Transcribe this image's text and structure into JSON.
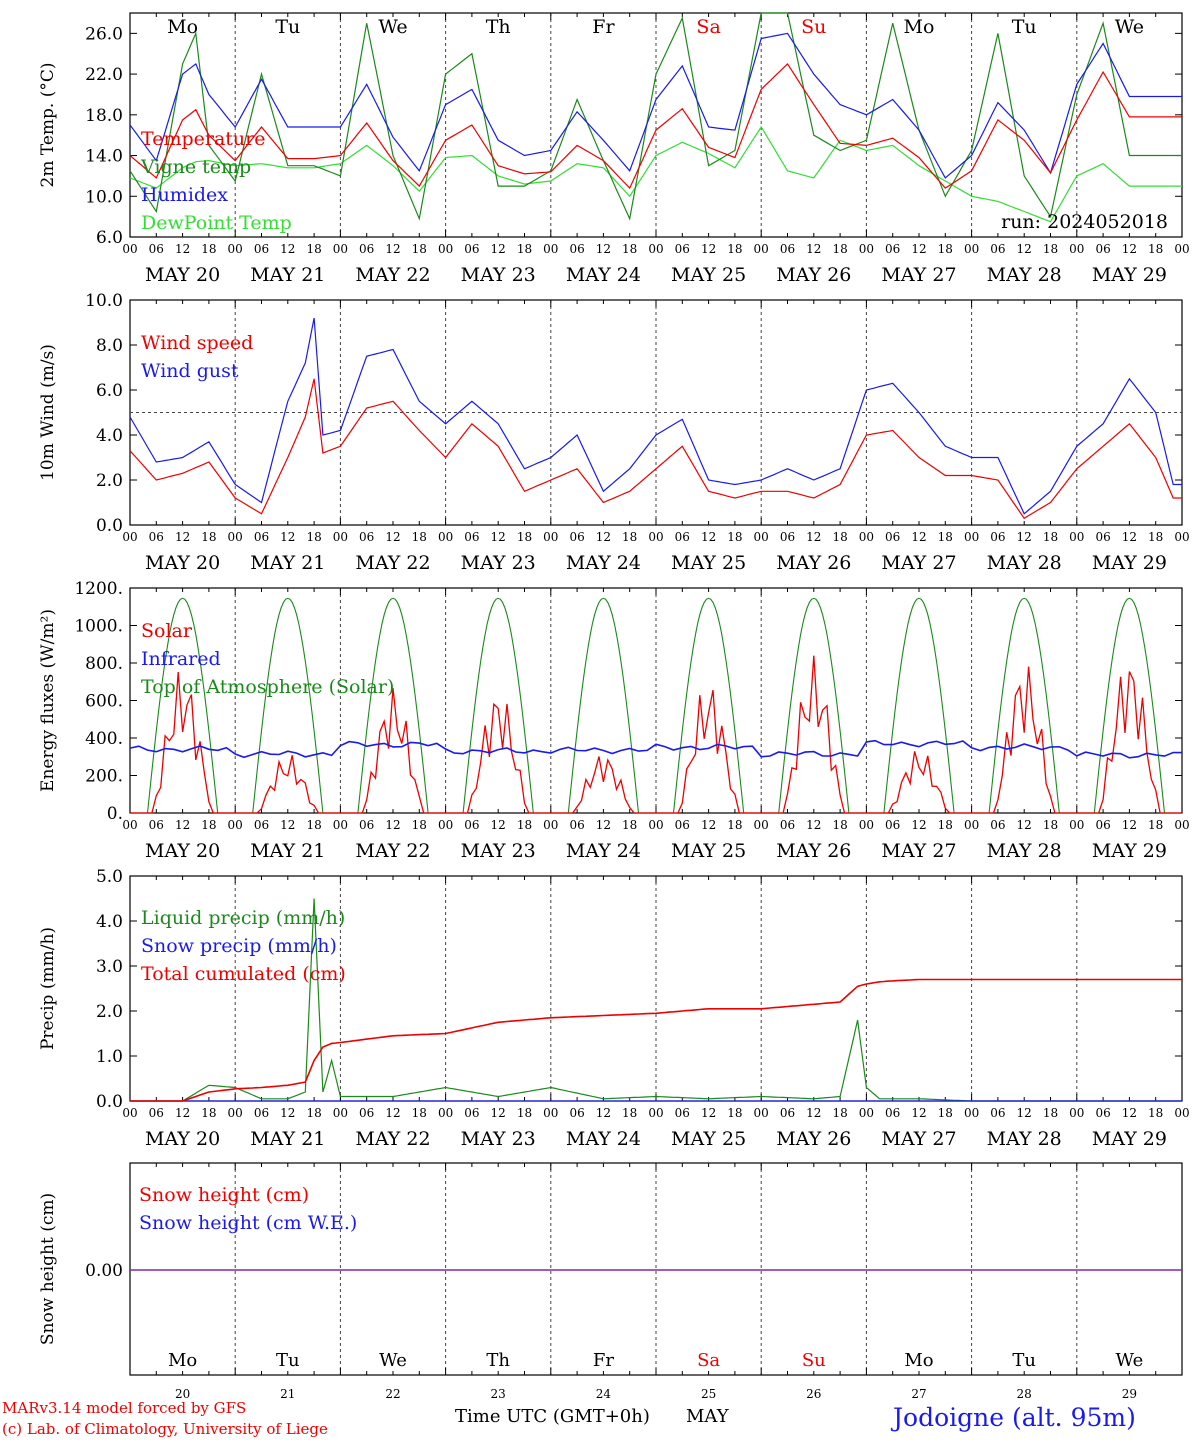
{
  "colors": {
    "red": "#ee0000",
    "blue": "#1a1aee",
    "green": "#1a8a1a",
    "lightgreen": "#33dd33",
    "purple": "#8822aa",
    "axis": "#000000"
  },
  "days": [
    "MAY 20",
    "MAY 21",
    "MAY 22",
    "MAY 23",
    "MAY 24",
    "MAY 25",
    "MAY 26",
    "MAY 27",
    "MAY 28",
    "MAY 29"
  ],
  "weekdays": [
    "Mo",
    "Tu",
    "We",
    "Th",
    "Fr",
    "Sa",
    "Su",
    "Mo",
    "Tu",
    "We"
  ],
  "weekday_colors": [
    "#000",
    "#000",
    "#000",
    "#000",
    "#000",
    "#ee0000",
    "#ee0000",
    "#000",
    "#000",
    "#000"
  ],
  "hour_ticks": [
    "00",
    "06",
    "12",
    "18"
  ],
  "bottom_day_numbers": [
    "20",
    "21",
    "22",
    "23",
    "24",
    "25",
    "26",
    "27",
    "28",
    "29"
  ],
  "run_label": "run: 2024052018",
  "footer": {
    "credit1": "MARv3.14 model forced by GFS",
    "credit2": "(c) Lab. of Climatology, University of Liege",
    "xlabel": "Time UTC (GMT+0h)",
    "month": "MAY",
    "station": "Jodoigne (alt. 95m)"
  },
  "chart_data": [
    {
      "type": "line",
      "title": "",
      "ylabel": "2m Temp. (°C)",
      "ylim": [
        6,
        28
      ],
      "yticks": [
        "6.0",
        "10.0",
        "14.0",
        "18.0",
        "22.0",
        "26.0"
      ],
      "ytick_values": [
        6,
        10,
        14,
        18,
        22,
        26
      ],
      "x_hours": [
        0,
        6,
        12,
        15,
        18,
        24,
        30,
        36,
        42,
        48,
        54,
        60,
        66,
        72,
        78,
        84,
        90,
        96,
        102,
        108,
        114,
        120,
        126,
        132,
        138,
        144,
        150,
        156,
        162,
        168,
        174,
        180,
        186,
        192,
        198,
        204,
        210,
        216,
        222,
        228,
        234,
        240
      ],
      "series": [
        {
          "name": "Temperature",
          "color": "#ee0000",
          "values": [
            14.0,
            11.8,
            17.5,
            18.5,
            16.0,
            13.5,
            16.8,
            13.7,
            13.7,
            14.0,
            17.2,
            13.5,
            11.0,
            15.5,
            17.0,
            13.0,
            12.2,
            12.4,
            15.0,
            13.5,
            10.8,
            16.5,
            18.6,
            14.8,
            13.8,
            20.5,
            23.0,
            19.0,
            15.2,
            15.0,
            15.7,
            13.8,
            10.8,
            12.5,
            17.5,
            15.5,
            12.3,
            17.5,
            22.2,
            17.8,
            17.8,
            17.8
          ]
        },
        {
          "name": "Vigne temp",
          "color": "#1a8a1a",
          "values": [
            12.5,
            8.5,
            23.0,
            26.0,
            15.0,
            11.5,
            22.0,
            13.0,
            13.0,
            12.0,
            27.0,
            14.0,
            7.8,
            22.0,
            24.0,
            11.0,
            11.0,
            12.5,
            19.5,
            13.5,
            7.8,
            22.0,
            27.5,
            13.0,
            14.5,
            28.0,
            28.0,
            16.0,
            14.5,
            15.5,
            27.0,
            16.5,
            10.0,
            14.5,
            26.0,
            12.0,
            8.0,
            20.0,
            27.0,
            14.0,
            14.0,
            14.0
          ]
        },
        {
          "name": "Humidex",
          "color": "#1a1aee",
          "values": [
            17.0,
            13.5,
            22.0,
            23.0,
            20.0,
            16.8,
            21.5,
            16.8,
            16.8,
            16.8,
            21.0,
            15.8,
            12.5,
            19.0,
            20.5,
            15.5,
            14.0,
            14.5,
            18.3,
            15.5,
            12.5,
            19.5,
            22.8,
            16.8,
            16.5,
            25.5,
            26.0,
            22.0,
            19.0,
            18.0,
            19.5,
            16.5,
            11.8,
            14.0,
            19.2,
            16.5,
            12.3,
            21.0,
            25.0,
            19.8,
            19.8,
            19.8
          ]
        },
        {
          "name": "DewPoint Temp",
          "color": "#33dd33",
          "values": [
            11.8,
            10.8,
            12.8,
            13.4,
            13.5,
            13.0,
            13.2,
            12.8,
            12.8,
            13.2,
            15.0,
            13.0,
            10.5,
            13.8,
            14.0,
            12.0,
            11.2,
            11.5,
            13.2,
            12.8,
            10.0,
            14.0,
            15.3,
            14.2,
            12.8,
            16.8,
            12.5,
            11.8,
            15.5,
            14.5,
            15.0,
            13.0,
            11.5,
            10.0,
            9.5,
            8.5,
            7.5,
            12.0,
            13.2,
            11.0,
            11.0,
            11.0
          ]
        }
      ]
    },
    {
      "type": "line",
      "title": "",
      "ylabel": "10m Wind (m/s)",
      "ylim": [
        0,
        10
      ],
      "yticks": [
        "0.0",
        "2.0",
        "4.0",
        "6.0",
        "8.0",
        "10.0"
      ],
      "ytick_values": [
        0,
        2,
        4,
        6,
        8,
        10
      ],
      "reference_line": 5.0,
      "x_hours": [
        0,
        6,
        12,
        18,
        24,
        30,
        36,
        40,
        42,
        44,
        48,
        54,
        60,
        66,
        72,
        78,
        84,
        90,
        96,
        102,
        108,
        114,
        120,
        126,
        132,
        138,
        144,
        150,
        156,
        162,
        168,
        174,
        180,
        186,
        192,
        198,
        204,
        210,
        216,
        222,
        228,
        234,
        238,
        240
      ],
      "series": [
        {
          "name": "Wind speed",
          "color": "#ee0000",
          "values": [
            3.3,
            2.0,
            2.3,
            2.8,
            1.2,
            0.5,
            3.0,
            4.8,
            6.5,
            3.2,
            3.5,
            5.2,
            5.5,
            4.2,
            3.0,
            4.5,
            3.5,
            1.5,
            2.0,
            2.5,
            1.0,
            1.5,
            2.5,
            3.5,
            1.5,
            1.2,
            1.5,
            1.5,
            1.2,
            1.8,
            4.0,
            4.2,
            3.0,
            2.2,
            2.2,
            2.0,
            0.3,
            1.0,
            2.5,
            3.5,
            4.5,
            3.0,
            1.2,
            1.2
          ]
        },
        {
          "name": "Wind gust",
          "color": "#1a1aee",
          "values": [
            4.8,
            2.8,
            3.0,
            3.7,
            1.8,
            1.0,
            5.5,
            7.2,
            9.2,
            4.0,
            4.2,
            7.5,
            7.8,
            5.5,
            4.5,
            5.5,
            4.5,
            2.5,
            3.0,
            4.0,
            1.5,
            2.5,
            4.0,
            4.7,
            2.0,
            1.8,
            2.0,
            2.5,
            2.0,
            2.5,
            6.0,
            6.3,
            5.0,
            3.5,
            3.0,
            3.0,
            0.5,
            1.5,
            3.5,
            4.5,
            6.5,
            5.0,
            1.8,
            1.8
          ]
        }
      ]
    },
    {
      "type": "line",
      "title": "",
      "ylabel": "Energy fluxes (W/m²)",
      "ylim": [
        0,
        1200
      ],
      "yticks": [
        "0.",
        "200.",
        "400.",
        "600.",
        "800.",
        "1000.",
        "1200."
      ],
      "ytick_values": [
        0,
        200,
        400,
        600,
        800,
        1000,
        1200
      ],
      "series": [
        {
          "name": "Solar",
          "color": "#ee0000",
          "daily_peaks": [
            780,
            320,
            680,
            680,
            330,
            720,
            840,
            350,
            830,
            870
          ]
        },
        {
          "name": "Infrared",
          "color": "#1a1aee",
          "daily_mean": [
            340,
            315,
            365,
            330,
            335,
            350,
            315,
            370,
            350,
            310
          ]
        },
        {
          "name": "Top of Atmosphere (Solar)",
          "color": "#1a8a1a",
          "daily_peak": 1145,
          "sunrise_hour": 4,
          "sunset_hour": 20
        }
      ]
    },
    {
      "type": "line",
      "title": "",
      "ylabel": "Precip (mm/h)",
      "ylim": [
        0,
        5
      ],
      "yticks": [
        "0.0",
        "1.0",
        "2.0",
        "3.0",
        "4.0",
        "5.0"
      ],
      "ytick_values": [
        0,
        1,
        2,
        3,
        4,
        5
      ],
      "x_hours": [
        0,
        12,
        18,
        24,
        30,
        36,
        40,
        42,
        44,
        46,
        48,
        60,
        72,
        84,
        96,
        108,
        120,
        132,
        144,
        156,
        162,
        166,
        168,
        171,
        174,
        180,
        192,
        204,
        216,
        228,
        240
      ],
      "series": [
        {
          "name": "Liquid precip (mm/h)",
          "color": "#1a8a1a",
          "values": [
            0,
            0,
            0.35,
            0.3,
            0.05,
            0.05,
            0.2,
            4.5,
            0.2,
            0.9,
            0.1,
            0.1,
            0.3,
            0.1,
            0.3,
            0.05,
            0.1,
            0.05,
            0.1,
            0.05,
            0.1,
            1.8,
            0.3,
            0.05,
            0.05,
            0.05,
            0,
            0,
            0,
            0,
            0
          ]
        },
        {
          "name": "Snow precip (mm/h)",
          "color": "#1a1aee",
          "values": [
            0,
            0,
            0,
            0,
            0,
            0,
            0,
            0,
            0,
            0,
            0,
            0,
            0,
            0,
            0,
            0,
            0,
            0,
            0,
            0,
            0,
            0,
            0,
            0,
            0,
            0,
            0,
            0,
            0,
            0,
            0
          ]
        },
        {
          "name": "Total cumulated (cm)",
          "color": "#ee0000",
          "values": [
            0,
            0,
            0.2,
            0.27,
            0.3,
            0.35,
            0.42,
            0.9,
            1.2,
            1.28,
            1.3,
            1.45,
            1.5,
            1.75,
            1.85,
            1.9,
            1.95,
            2.05,
            2.05,
            2.15,
            2.2,
            2.55,
            2.6,
            2.65,
            2.67,
            2.7,
            2.7,
            2.7,
            2.7,
            2.7,
            2.7
          ]
        }
      ]
    },
    {
      "type": "line",
      "title": "",
      "ylabel": "Snow height (cm)",
      "ytick": "0.00",
      "series": [
        {
          "name": "Snow height (cm)",
          "color": "#ee0000",
          "values": [
            0,
            0
          ]
        },
        {
          "name": "Snow height (cm W.E.)",
          "color": "#1a1aee",
          "values": [
            0,
            0
          ]
        }
      ]
    }
  ]
}
